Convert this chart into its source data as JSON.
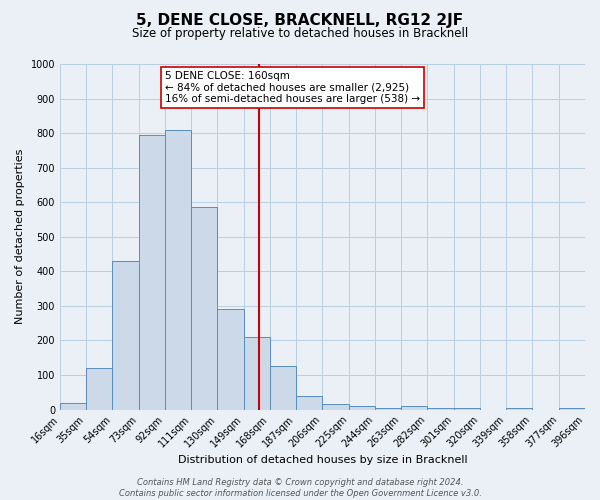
{
  "title": "5, DENE CLOSE, BRACKNELL, RG12 2JF",
  "subtitle": "Size of property relative to detached houses in Bracknell",
  "xlabel": "Distribution of detached houses by size in Bracknell",
  "ylabel": "Number of detached properties",
  "bin_edges": [
    16,
    35,
    54,
    73,
    92,
    111,
    130,
    149,
    168,
    187,
    206,
    225,
    244,
    263,
    282,
    301,
    320,
    339,
    358,
    377,
    396
  ],
  "bar_heights": [
    20,
    120,
    430,
    795,
    810,
    585,
    290,
    210,
    125,
    40,
    15,
    10,
    5,
    10,
    5,
    5,
    0,
    5,
    0,
    5
  ],
  "bar_facecolor": "#ccd9e8",
  "bar_edgecolor": "#5a8cbf",
  "tick_labels": [
    "16sqm",
    "35sqm",
    "54sqm",
    "73sqm",
    "92sqm",
    "111sqm",
    "130sqm",
    "149sqm",
    "168sqm",
    "187sqm",
    "206sqm",
    "225sqm",
    "244sqm",
    "263sqm",
    "282sqm",
    "301sqm",
    "320sqm",
    "339sqm",
    "358sqm",
    "377sqm",
    "396sqm"
  ],
  "ylim": [
    0,
    1000
  ],
  "yticks": [
    0,
    100,
    200,
    300,
    400,
    500,
    600,
    700,
    800,
    900,
    1000
  ],
  "property_value": 160,
  "vline_color": "#cc0000",
  "annotation_box_text": [
    "5 DENE CLOSE: 160sqm",
    "← 84% of detached houses are smaller (2,925)",
    "16% of semi-detached houses are larger (538) →"
  ],
  "annotation_box_edgecolor": "#cc0000",
  "annotation_box_facecolor": "#ffffff",
  "grid_color": "#b8cfe0",
  "background_color": "#eaf0f6",
  "footer_lines": [
    "Contains HM Land Registry data © Crown copyright and database right 2024.",
    "Contains public sector information licensed under the Open Government Licence v3.0."
  ],
  "title_fontsize": 11,
  "subtitle_fontsize": 8.5,
  "axis_label_fontsize": 8,
  "tick_fontsize": 7,
  "footer_fontsize": 6,
  "annotation_fontsize": 7.5
}
